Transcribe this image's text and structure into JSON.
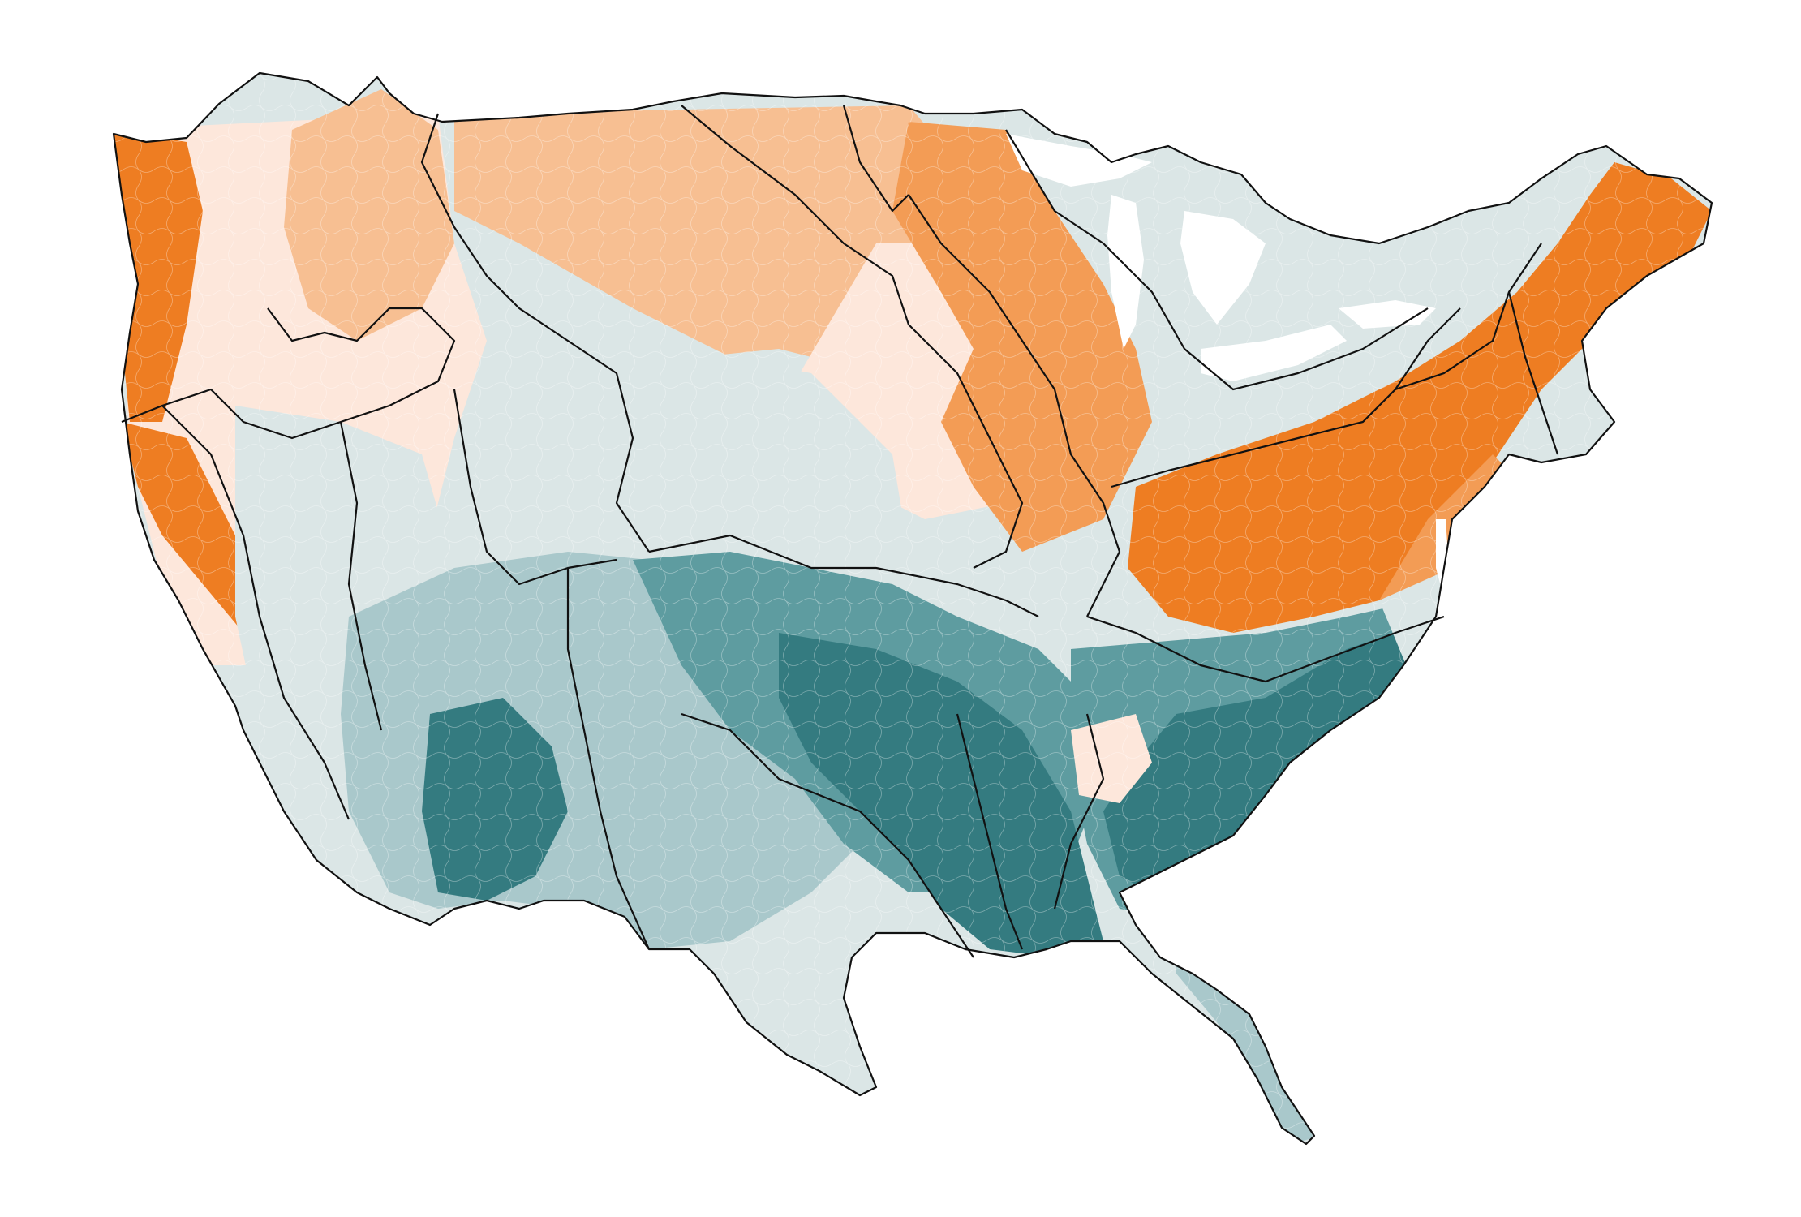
{
  "map": {
    "subject": "contiguous-united-states-watersheds",
    "colors": {
      "orange_strong": "#ee7d22",
      "orange_medium": "#f39c55",
      "orange_light": "#f7bf92",
      "orange_pale": "#fde7db",
      "neutral_pale": "#dbe6e6",
      "teal_light": "#a9c8cb",
      "teal_medium": "#5e9ca0",
      "teal_dark": "#347b80",
      "water": "#ffffff",
      "boundary": "#111111"
    },
    "legend_visible": false,
    "title_visible": false
  }
}
